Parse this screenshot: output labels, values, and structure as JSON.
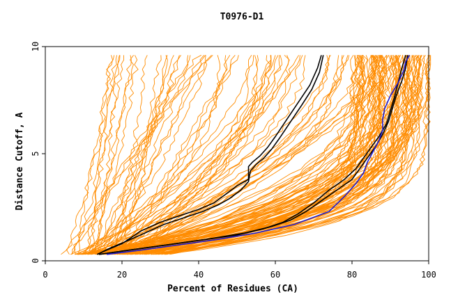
{
  "chart_data": {
    "type": "line",
    "title": "T0976-D1",
    "xlabel": "Percent of Residues (CA)",
    "ylabel": "Distance Cutoff, A",
    "xlim": [
      0,
      100
    ],
    "ylim": [
      0,
      10
    ],
    "xticks": [
      "0",
      "20",
      "40",
      "60",
      "80",
      "100"
    ],
    "yticks": [
      "0",
      "5",
      "10"
    ],
    "grid": false,
    "legend": "none",
    "colors": {
      "background_series": "#ff8c00",
      "highlight_black": "#000000",
      "highlight_blue": "#1a1ad4"
    },
    "series": [
      {
        "color": "#000000",
        "x": [
          13.5,
          16,
          20,
          25,
          30,
          35,
          40,
          44,
          47,
          50,
          53,
          53,
          54,
          56,
          58,
          60,
          63,
          66,
          69,
          71,
          72
        ],
        "y": [
          0.3,
          0.5,
          0.8,
          1.4,
          1.8,
          2.1,
          2.4,
          2.7,
          3.1,
          3.5,
          3.8,
          4.4,
          4.6,
          4.9,
          5.3,
          5.8,
          6.6,
          7.4,
          8.2,
          9.0,
          9.6
        ]
      },
      {
        "color": "#000000",
        "x": [
          13.5,
          17,
          21,
          26,
          31,
          36,
          41,
          45,
          48,
          51,
          53,
          53.5,
          55,
          57,
          59,
          61,
          64,
          67,
          69.5,
          71.5,
          72.5
        ],
        "y": [
          0.3,
          0.6,
          0.9,
          1.3,
          1.7,
          2.0,
          2.3,
          2.6,
          2.9,
          3.3,
          3.7,
          4.2,
          4.5,
          4.8,
          5.2,
          5.7,
          6.5,
          7.3,
          8.0,
          8.8,
          9.6
        ]
      },
      {
        "color": "#000000",
        "x": [
          14,
          20,
          30,
          40,
          50,
          57,
          62,
          66,
          70,
          74,
          78,
          81,
          83,
          85,
          87,
          89,
          90,
          91,
          92,
          93,
          94
        ],
        "y": [
          0.3,
          0.45,
          0.7,
          0.95,
          1.2,
          1.5,
          1.8,
          2.2,
          2.7,
          3.3,
          3.8,
          4.3,
          4.8,
          5.3,
          5.8,
          6.4,
          7.0,
          7.6,
          8.3,
          9.0,
          9.6
        ]
      },
      {
        "color": "#000000",
        "x": [
          14,
          22,
          32,
          42,
          52,
          59,
          64,
          68,
          72,
          76,
          80,
          82,
          84,
          86,
          88,
          89.5,
          90.5,
          91.5,
          93,
          94,
          94.5
        ],
        "y": [
          0.3,
          0.5,
          0.75,
          1.0,
          1.3,
          1.6,
          1.9,
          2.3,
          2.8,
          3.3,
          3.8,
          4.3,
          4.8,
          5.3,
          5.9,
          6.5,
          7.1,
          7.7,
          8.4,
          9.0,
          9.6
        ]
      },
      {
        "color": "#1a1ad4",
        "x": [
          16,
          25,
          35,
          45,
          55,
          65,
          74,
          78,
          81,
          83,
          84,
          85.5,
          87,
          88,
          88,
          88.5,
          90,
          92,
          93.5,
          94,
          95
        ],
        "y": [
          0.3,
          0.5,
          0.75,
          1.0,
          1.3,
          1.7,
          2.3,
          3.0,
          3.6,
          4.1,
          4.6,
          5.1,
          5.6,
          6.1,
          6.6,
          7.1,
          7.7,
          8.3,
          8.9,
          9.3,
          9.6
        ]
      }
    ]
  }
}
